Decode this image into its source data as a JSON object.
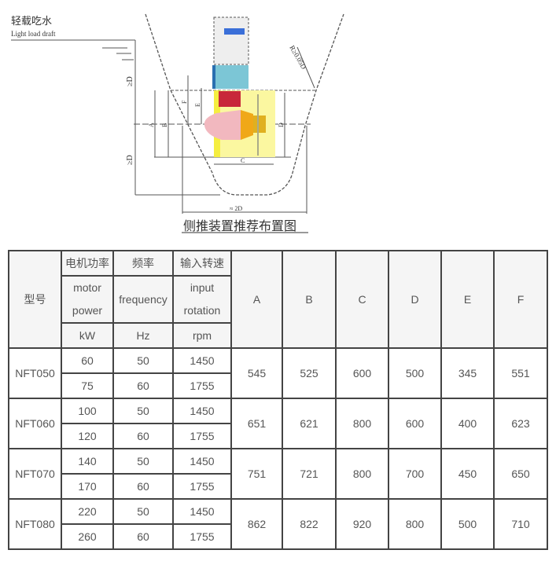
{
  "diagram": {
    "draft_label_zh": "轻载吃水",
    "draft_label_en": "Light load draft",
    "caption": "侧推装置推荐布置图",
    "dimension_labels": [
      "A",
      "B",
      "C",
      "D",
      "E",
      "F",
      "≥D",
      "≥D",
      "≈ 2D",
      "R≥0.05D"
    ]
  },
  "table": {
    "header": {
      "model": "型号",
      "power_zh": "电机功率",
      "power_en_1": "motor",
      "power_en_2": "power",
      "power_unit": "kW",
      "freq_zh": "频率",
      "freq_en": "frequency",
      "freq_unit": "Hz",
      "speed_zh": "输入转速",
      "speed_en_1": "input",
      "speed_en_2": "rotation",
      "speed_unit": "rpm",
      "dims": [
        "A",
        "B",
        "C",
        "D",
        "E",
        "F"
      ]
    },
    "rows": [
      {
        "model": "NFT050",
        "variants": [
          {
            "power": "60",
            "freq": "50",
            "rpm": "1450"
          },
          {
            "power": "75",
            "freq": "60",
            "rpm": "1755"
          }
        ],
        "dims": [
          "545",
          "525",
          "600",
          "500",
          "345",
          "551"
        ]
      },
      {
        "model": "NFT060",
        "variants": [
          {
            "power": "100",
            "freq": "50",
            "rpm": "1450"
          },
          {
            "power": "120",
            "freq": "60",
            "rpm": "1755"
          }
        ],
        "dims": [
          "651",
          "621",
          "800",
          "600",
          "400",
          "623"
        ]
      },
      {
        "model": "NFT070",
        "variants": [
          {
            "power": "140",
            "freq": "50",
            "rpm": "1450"
          },
          {
            "power": "170",
            "freq": "60",
            "rpm": "1755"
          }
        ],
        "dims": [
          "751",
          "721",
          "800",
          "700",
          "450",
          "650"
        ]
      },
      {
        "model": "NFT080",
        "variants": [
          {
            "power": "220",
            "freq": "50",
            "rpm": "1450"
          },
          {
            "power": "260",
            "freq": "60",
            "rpm": "1755"
          }
        ],
        "dims": [
          "862",
          "822",
          "920",
          "800",
          "500",
          "710"
        ]
      }
    ]
  }
}
